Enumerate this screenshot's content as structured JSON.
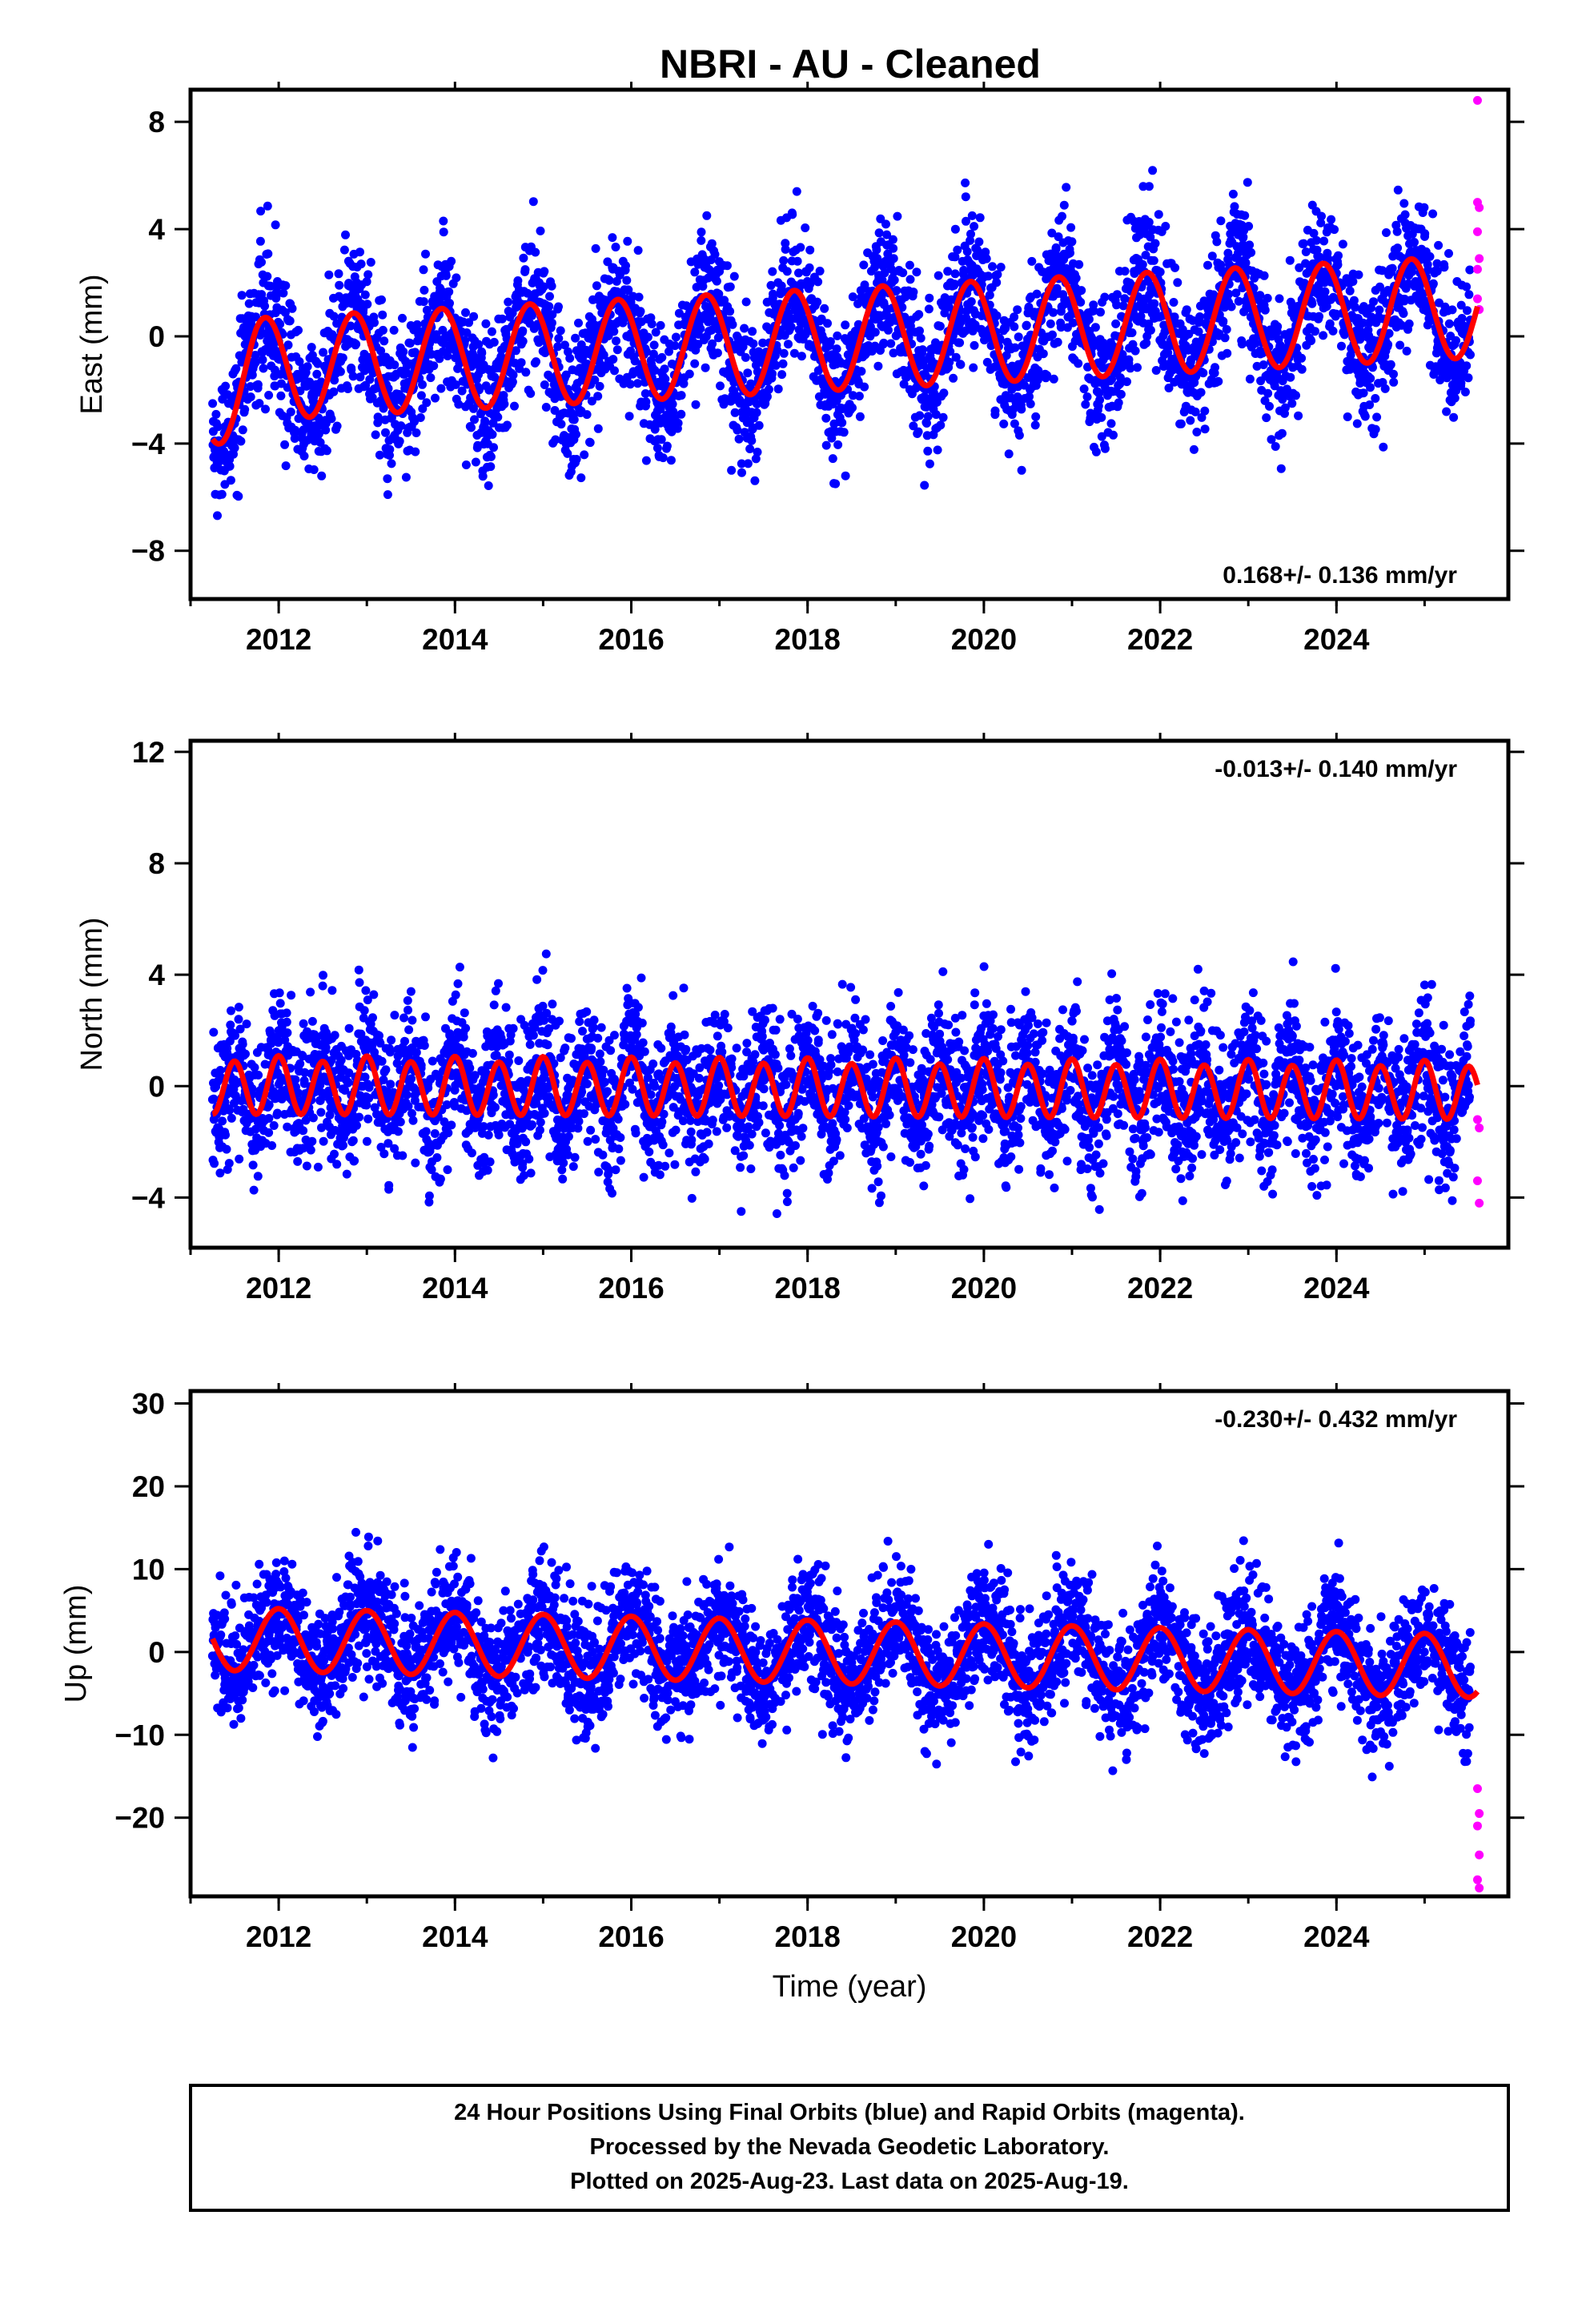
{
  "title": "NBRI  - AU - Cleaned",
  "colors": {
    "final": "#0000ff",
    "rapid": "#ff00ff",
    "model": "#ff0000",
    "frame": "#000000"
  },
  "chart_data": [
    {
      "type": "scatter",
      "ylabel": "East (mm)",
      "rate_label": "0.168+/- 0.136 mm/yr",
      "xlim": [
        2011.0,
        2025.95
      ],
      "ylim": [
        -9.8,
        9.2
      ],
      "x_ticks": [
        "2012",
        "2014",
        "2016",
        "2018",
        "2020",
        "2022",
        "2024"
      ],
      "y_ticks": [
        "8",
        "4",
        "0",
        "−4",
        "−8"
      ],
      "series": [
        {
          "role": "final",
          "x_start": 2011.25,
          "x_end": 2025.52,
          "trend_mm": -1.3,
          "rate_mm_yr": 0.168,
          "annual_amp": 1.9,
          "semiannual_amp": 0.0,
          "annual_peak": 2011.85,
          "scatter_sd": 1.3,
          "offset_start": -1.0,
          "offset_end": 0.0
        },
        {
          "role": "model",
          "x_start": 2011.25,
          "x_end": 2025.6
        },
        {
          "role": "rapid",
          "points": [
            [
              2025.6,
              8.8
            ],
            [
              2025.6,
              5.0
            ],
            [
              2025.62,
              4.8
            ],
            [
              2025.6,
              3.9
            ],
            [
              2025.62,
              2.9
            ],
            [
              2025.6,
              2.5
            ],
            [
              2025.62,
              1.0
            ],
            [
              2025.6,
              1.4
            ]
          ]
        }
      ]
    },
    {
      "type": "scatter",
      "ylabel": "North (mm)",
      "rate_label": "-0.013+/- 0.140 mm/yr",
      "xlim": [
        2011.0,
        2025.95
      ],
      "ylim": [
        -5.8,
        12.4
      ],
      "x_ticks": [
        "2012",
        "2014",
        "2016",
        "2018",
        "2020",
        "2022",
        "2024"
      ],
      "y_ticks": [
        "12",
        "8",
        "4",
        "0",
        "−4"
      ],
      "series": [
        {
          "role": "final",
          "x_start": 2011.25,
          "x_end": 2025.52,
          "trend_mm": 0.0,
          "rate_mm_yr": -0.013,
          "annual_amp": 0.1,
          "semiannual_amp": 1.0,
          "annual_peak": 2012.0,
          "scatter_sd": 1.25,
          "offset_start": 0.0,
          "offset_end": 0.0
        },
        {
          "role": "model",
          "x_start": 2011.25,
          "x_end": 2025.6
        },
        {
          "role": "rapid",
          "points": [
            [
              2025.6,
              -1.2
            ],
            [
              2025.62,
              -1.5
            ],
            [
              2025.6,
              -3.4
            ],
            [
              2025.62,
              -4.2
            ]
          ]
        }
      ]
    },
    {
      "type": "scatter",
      "ylabel": "Up (mm)",
      "rate_label": "-0.230+/- 0.432 mm/yr",
      "xlim": [
        2011.0,
        2025.95
      ],
      "ylim": [
        -29.5,
        31.5
      ],
      "x_ticks": [
        "2012",
        "2014",
        "2016",
        "2018",
        "2020",
        "2022",
        "2024"
      ],
      "y_ticks": [
        "30",
        "20",
        "10",
        "0",
        "−10",
        "−20"
      ],
      "xlabel": "Time (year)",
      "series": [
        {
          "role": "final",
          "x_start": 2011.25,
          "x_end": 2025.52,
          "trend_mm": 1.6,
          "rate_mm_yr": -0.23,
          "annual_amp": 3.8,
          "semiannual_amp": 0.0,
          "annual_peak": 2012.0,
          "scatter_sd": 3.6,
          "offset_start": 0.0,
          "offset_end": 0.0
        },
        {
          "role": "model",
          "x_start": 2011.25,
          "x_end": 2025.6
        },
        {
          "role": "rapid",
          "points": [
            [
              2025.6,
              -16.5
            ],
            [
              2025.62,
              -19.5
            ],
            [
              2025.6,
              -21.0
            ],
            [
              2025.62,
              -24.5
            ],
            [
              2025.6,
              -27.5
            ],
            [
              2025.62,
              -28.5
            ]
          ]
        }
      ]
    }
  ],
  "footer": {
    "line1": "24 Hour Positions Using Final Orbits (blue) and Rapid Orbits (magenta).",
    "line2": "Processed by the Nevada Geodetic Laboratory.",
    "line3": "Plotted on 2025-Aug-23. Last data on 2025-Aug-19."
  }
}
